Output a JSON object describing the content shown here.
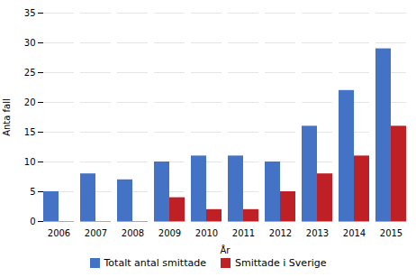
{
  "chart_data": {
    "type": "bar",
    "categories": [
      "2006",
      "2007",
      "2008",
      "2009",
      "2010",
      "2011",
      "2012",
      "2013",
      "2014",
      "2015"
    ],
    "series": [
      {
        "name": "Totalt antal smittade",
        "color": "#4472C4",
        "values": [
          5,
          8,
          7,
          10,
          11,
          11,
          10,
          16,
          22,
          29
        ]
      },
      {
        "name": "Smittade i Sverige",
        "color": "#BE2026",
        "values": [
          0,
          0,
          0,
          4,
          2,
          2,
          5,
          8,
          11,
          16
        ]
      }
    ],
    "xlabel": "År",
    "ylabel": "Anta fall",
    "ylim": [
      0,
      35
    ],
    "yticks": [
      0,
      5,
      10,
      15,
      20,
      25,
      30,
      35
    ],
    "grid": true,
    "legend": "bottom"
  }
}
